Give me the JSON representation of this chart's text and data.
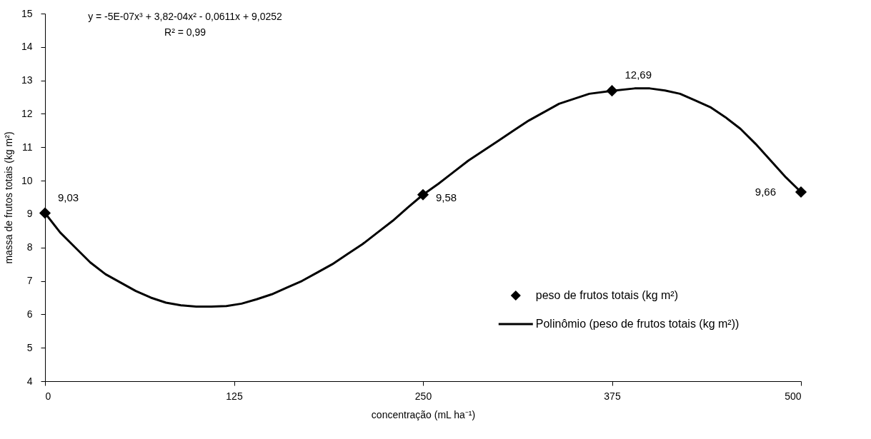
{
  "chart_data": {
    "type": "scatter",
    "xlabel": "concentração (mL ha⁻¹)",
    "ylabel": "massa de frutos totais (kg m²)",
    "annotations": [
      "y = -5E-07x³ + 3,82-04x² - 0,0611x + 9,0252",
      "R² = 0,99"
    ],
    "xlim": [
      0,
      500
    ],
    "xticks": [
      0,
      125,
      250,
      375,
      500
    ],
    "ylim": [
      4,
      15
    ],
    "yticks": [
      4,
      5,
      6,
      7,
      8,
      9,
      10,
      11,
      12,
      13,
      14,
      15
    ],
    "grid": false,
    "legend": "bottom right",
    "series": [
      {
        "name": "peso de frutos totais (kg m²)",
        "marker": "diamond",
        "color": "#000000",
        "x": [
          0,
          250,
          375,
          500
        ],
        "values": [
          9.03,
          9.58,
          12.69,
          9.66
        ],
        "value_labels": [
          "9,03",
          "9,58",
          "12,69",
          "9,66"
        ]
      },
      {
        "name": "Polinômio (peso de frutos totais (kg m²))",
        "type": "line",
        "marker": "none",
        "line_style": "solid",
        "color": "#000000",
        "x": [
          0,
          10,
          20,
          30,
          40,
          50,
          60,
          70,
          80,
          90,
          100,
          110,
          120,
          130,
          140,
          150,
          160,
          170,
          180,
          190,
          200,
          210,
          220,
          230,
          240,
          250,
          260,
          270,
          280,
          290,
          300,
          310,
          320,
          330,
          340,
          350,
          360,
          375,
          390,
          400,
          410,
          420,
          430,
          440,
          450,
          460,
          470,
          480,
          490,
          500
        ],
        "values": [
          9.03,
          8.45,
          8.0,
          7.55,
          7.2,
          6.95,
          6.7,
          6.5,
          6.35,
          6.27,
          6.23,
          6.23,
          6.25,
          6.32,
          6.45,
          6.6,
          6.8,
          7.0,
          7.25,
          7.5,
          7.8,
          8.1,
          8.45,
          8.8,
          9.2,
          9.58,
          9.9,
          10.25,
          10.6,
          10.9,
          11.2,
          11.5,
          11.8,
          12.05,
          12.3,
          12.45,
          12.6,
          12.69,
          12.76,
          12.76,
          12.7,
          12.6,
          12.4,
          12.2,
          11.9,
          11.55,
          11.1,
          10.6,
          10.1,
          9.66
        ]
      }
    ]
  }
}
